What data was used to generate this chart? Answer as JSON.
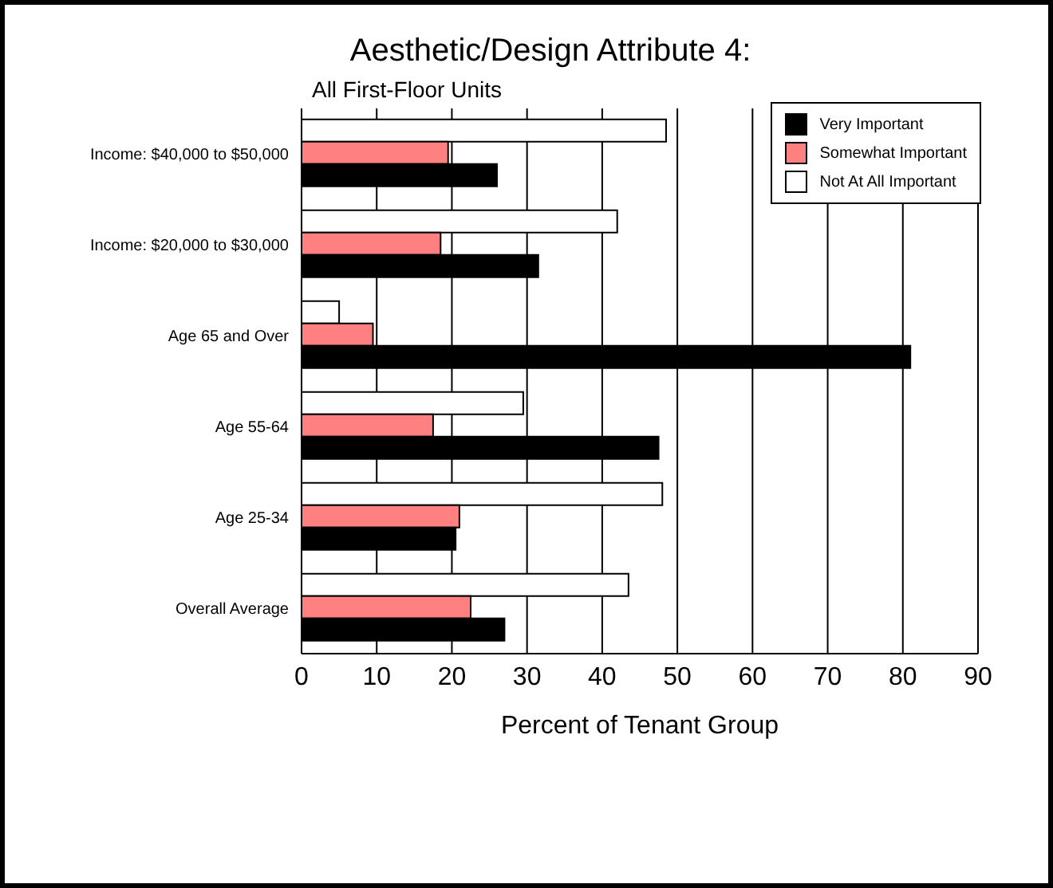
{
  "chart_data": {
    "type": "bar",
    "orientation": "horizontal",
    "title": "Aesthetic/Design Attribute 4:",
    "subtitle": "All First-Floor Units",
    "xlabel": "Percent of Tenant Group",
    "categories": [
      "Income: $40,000 to $50,000",
      "Income: $20,000 to $30,000",
      "Age 65 and Over",
      "Age 55-64",
      "Age 25-34",
      "Overall Average"
    ],
    "series": [
      {
        "name": "Very Important",
        "color": "#000000",
        "values": [
          26,
          31.5,
          81,
          47.5,
          20.5,
          27
        ]
      },
      {
        "name": "Somewhat Important",
        "color": "#ff8080",
        "values": [
          19.5,
          18.5,
          9.5,
          17.5,
          21,
          22.5
        ]
      },
      {
        "name": "Not At All Important",
        "color": "#ffffff",
        "values": [
          48.5,
          42,
          5,
          29.5,
          48,
          43.5
        ]
      }
    ],
    "xlim": [
      0,
      90
    ],
    "xticks": [
      0,
      10,
      20,
      30,
      40,
      50,
      60,
      70,
      80,
      90
    ],
    "grid": "x",
    "legend": "top right"
  }
}
